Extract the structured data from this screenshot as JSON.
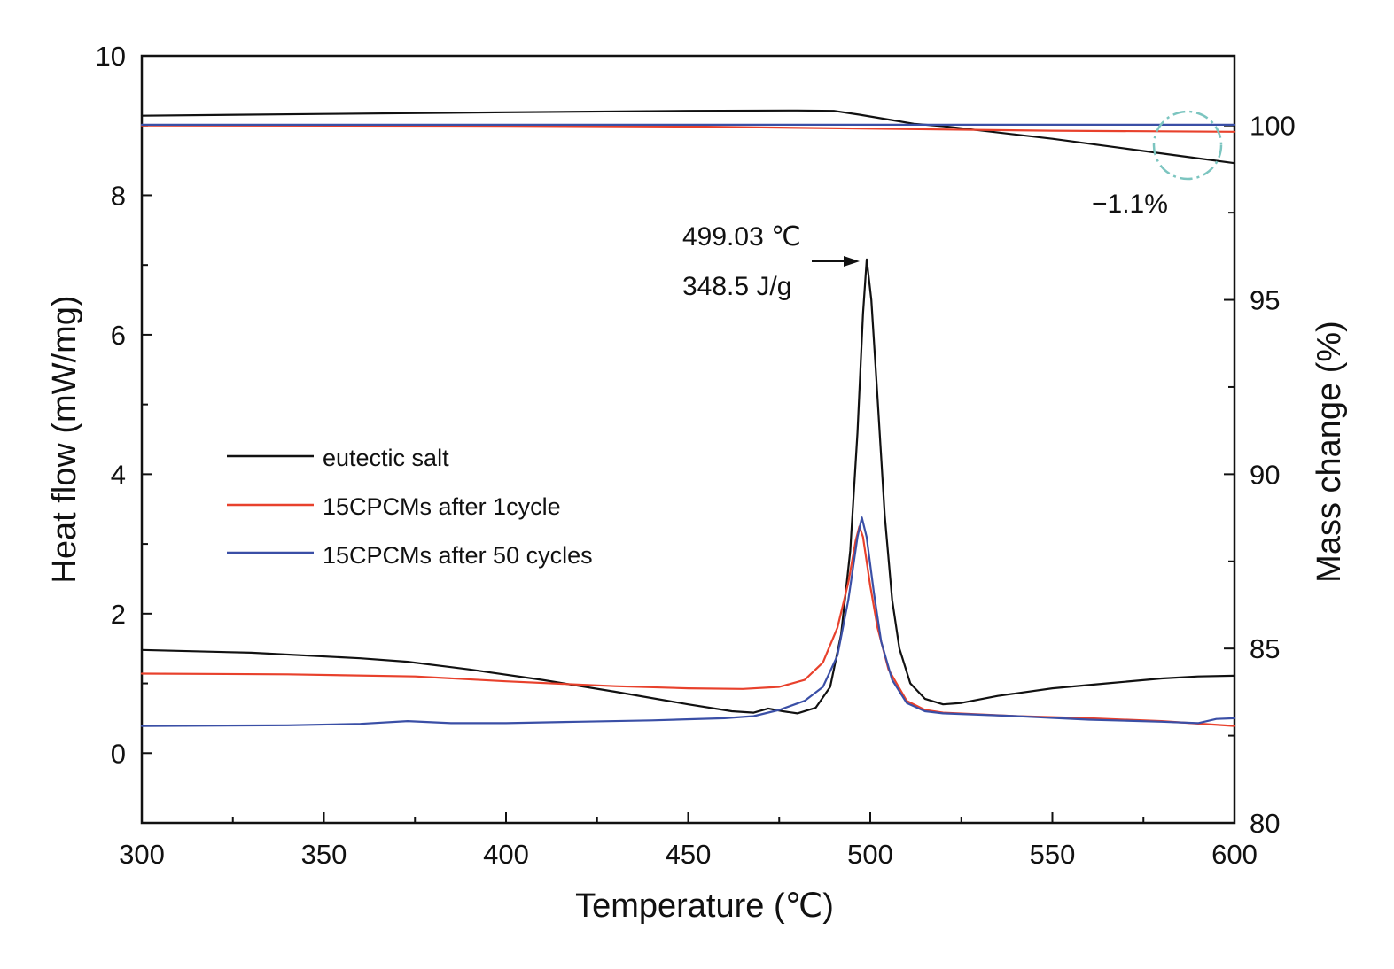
{
  "chart_data": {
    "type": "line",
    "xlabel": "Temperature (℃)",
    "ylabel_left": "Heat flow (mW/mg)",
    "ylabel_right": "Mass change (%)",
    "xlim": [
      300,
      600
    ],
    "ylim_left": [
      -1,
      10
    ],
    "ylim_right": [
      80,
      102
    ],
    "x_ticks": [
      300,
      350,
      400,
      450,
      500,
      550,
      600
    ],
    "y_left_ticks": [
      0,
      2,
      4,
      6,
      8,
      10
    ],
    "y_right_ticks": [
      80,
      85,
      90,
      95,
      100
    ],
    "grid": false,
    "legend_position": "center-left",
    "series": [
      {
        "name": "eutectic salt",
        "axis": "left",
        "color": "#111111",
        "points": [
          [
            300,
            1.48
          ],
          [
            330,
            1.44
          ],
          [
            360,
            1.36
          ],
          [
            373,
            1.31
          ],
          [
            390,
            1.2
          ],
          [
            410,
            1.05
          ],
          [
            430,
            0.88
          ],
          [
            450,
            0.7
          ],
          [
            462,
            0.6
          ],
          [
            468,
            0.58
          ],
          [
            472,
            0.64
          ],
          [
            476,
            0.6
          ],
          [
            480,
            0.57
          ],
          [
            485,
            0.65
          ],
          [
            489,
            0.95
          ],
          [
            492,
            1.7
          ],
          [
            494.5,
            2.9
          ],
          [
            496.5,
            4.6
          ],
          [
            498,
            6.3
          ],
          [
            499.03,
            7.08
          ],
          [
            500.3,
            6.5
          ],
          [
            502,
            5.1
          ],
          [
            504,
            3.4
          ],
          [
            506,
            2.2
          ],
          [
            508,
            1.5
          ],
          [
            511,
            1.0
          ],
          [
            515,
            0.78
          ],
          [
            520,
            0.7
          ],
          [
            525,
            0.72
          ],
          [
            535,
            0.82
          ],
          [
            550,
            0.93
          ],
          [
            565,
            1.0
          ],
          [
            580,
            1.07
          ],
          [
            590,
            1.1
          ],
          [
            600,
            1.11
          ]
        ]
      },
      {
        "name": "15CPCMs after 1cycle",
        "axis": "left",
        "color": "#e8412c",
        "points": [
          [
            300,
            1.14
          ],
          [
            340,
            1.13
          ],
          [
            375,
            1.1
          ],
          [
            400,
            1.03
          ],
          [
            430,
            0.96
          ],
          [
            450,
            0.93
          ],
          [
            465,
            0.92
          ],
          [
            475,
            0.95
          ],
          [
            482,
            1.05
          ],
          [
            487,
            1.3
          ],
          [
            491,
            1.8
          ],
          [
            494,
            2.45
          ],
          [
            496,
            3.05
          ],
          [
            497,
            3.25
          ],
          [
            498,
            3.1
          ],
          [
            500,
            2.4
          ],
          [
            502,
            1.8
          ],
          [
            505,
            1.2
          ],
          [
            510,
            0.75
          ],
          [
            515,
            0.62
          ],
          [
            520,
            0.58
          ],
          [
            540,
            0.53
          ],
          [
            560,
            0.5
          ],
          [
            580,
            0.46
          ],
          [
            600,
            0.39
          ]
        ]
      },
      {
        "name": "15CPCMs after 50 cycles",
        "axis": "left",
        "color": "#3a4fa6",
        "points": [
          [
            300,
            0.39
          ],
          [
            340,
            0.4
          ],
          [
            360,
            0.42
          ],
          [
            373,
            0.46
          ],
          [
            385,
            0.43
          ],
          [
            400,
            0.43
          ],
          [
            420,
            0.45
          ],
          [
            440,
            0.47
          ],
          [
            460,
            0.5
          ],
          [
            468,
            0.53
          ],
          [
            475,
            0.62
          ],
          [
            482,
            0.75
          ],
          [
            487,
            0.95
          ],
          [
            491,
            1.4
          ],
          [
            494,
            2.2
          ],
          [
            496.5,
            3.1
          ],
          [
            497.7,
            3.38
          ],
          [
            499,
            3.1
          ],
          [
            501,
            2.3
          ],
          [
            503,
            1.6
          ],
          [
            506,
            1.05
          ],
          [
            510,
            0.72
          ],
          [
            515,
            0.6
          ],
          [
            520,
            0.57
          ],
          [
            540,
            0.53
          ],
          [
            560,
            0.48
          ],
          [
            580,
            0.45
          ],
          [
            590,
            0.43
          ],
          [
            595,
            0.49
          ],
          [
            600,
            0.5
          ]
        ]
      },
      {
        "name": "",
        "axis": "right",
        "color": "#111111",
        "points": [
          [
            300,
            100.28
          ],
          [
            350,
            100.33
          ],
          [
            400,
            100.38
          ],
          [
            450,
            100.42
          ],
          [
            480,
            100.43
          ],
          [
            490,
            100.42
          ],
          [
            497,
            100.31
          ],
          [
            505,
            100.17
          ],
          [
            512,
            100.05
          ],
          [
            520,
            99.98
          ],
          [
            530,
            99.86
          ],
          [
            550,
            99.62
          ],
          [
            570,
            99.34
          ],
          [
            585,
            99.13
          ],
          [
            600,
            98.92
          ]
        ]
      },
      {
        "name": "",
        "axis": "right",
        "color": "#e8412c",
        "points": [
          [
            300,
            100.0
          ],
          [
            400,
            99.99
          ],
          [
            450,
            99.97
          ],
          [
            500,
            99.91
          ],
          [
            550,
            99.85
          ],
          [
            600,
            99.82
          ]
        ]
      },
      {
        "name": "",
        "axis": "right",
        "color": "#3a4fa6",
        "points": [
          [
            300,
            100.02
          ],
          [
            400,
            100.02
          ],
          [
            500,
            100.02
          ],
          [
            600,
            100.02
          ]
        ]
      }
    ],
    "annotations": {
      "peak_temp": "499.03 ℃",
      "peak_enthalpy": "348.5 J/g",
      "mass_loss": "−1.1%"
    }
  }
}
